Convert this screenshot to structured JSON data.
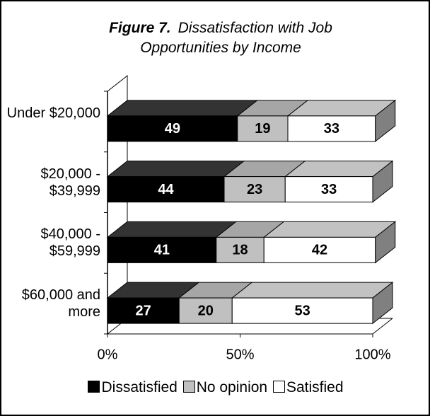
{
  "chart_data": {
    "type": "bar3d_stacked_horizontal",
    "figure_label": "Figure 7.",
    "title": "Dissatisfaction with Job Opportunities by Income",
    "categories": [
      "Under $20,000",
      "$20,000 - $39,999",
      "$40,000 - $59,999",
      "$60,000 and more"
    ],
    "series": [
      {
        "name": "Dissatisfied",
        "color": "#000000",
        "values": [
          49,
          44,
          41,
          27
        ]
      },
      {
        "name": "No opinion",
        "color": "#c0c0c0",
        "values": [
          19,
          23,
          18,
          20
        ]
      },
      {
        "name": "Satisfied",
        "color": "#ffffff",
        "values": [
          33,
          33,
          42,
          53
        ]
      }
    ],
    "xlim": [
      0,
      100
    ],
    "xticks": [
      {
        "value": 0,
        "label": "0%"
      },
      {
        "value": 50,
        "label": "50%"
      },
      {
        "value": 100,
        "label": "100%"
      }
    ],
    "legend": "bottom"
  }
}
